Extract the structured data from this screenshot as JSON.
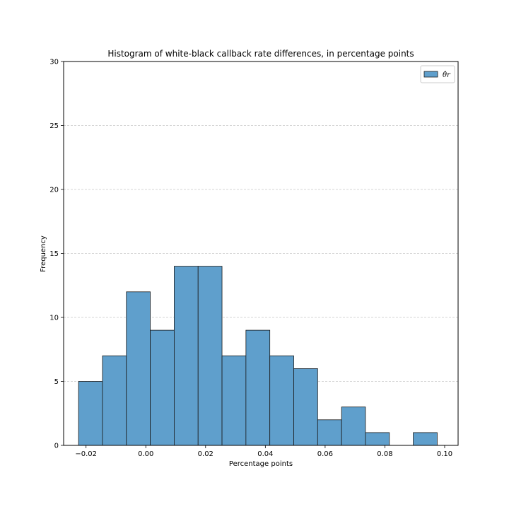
{
  "chart_data": {
    "type": "bar",
    "title": "Histogram of white-black callback rate differences, in percentage points",
    "xlabel": "Percentage points",
    "ylabel": "Frequency",
    "xlim": [
      -0.0275,
      0.1045
    ],
    "ylim": [
      0,
      30
    ],
    "x_ticks": [
      -0.02,
      0.0,
      0.02,
      0.04,
      0.06,
      0.08,
      0.1
    ],
    "x_tick_labels": [
      "−0.02",
      "0.00",
      "0.02",
      "0.04",
      "0.06",
      "0.08",
      "0.10"
    ],
    "y_ticks": [
      0,
      5,
      10,
      15,
      20,
      25,
      30
    ],
    "y_tick_labels": [
      "0",
      "5",
      "10",
      "15",
      "20",
      "25",
      "30"
    ],
    "grid": "y-dashed",
    "legend": {
      "placement": "top-right",
      "entries": [
        "θ̂r"
      ]
    },
    "bar_color": "#5f9fcc",
    "bins": [
      {
        "start": -0.0225,
        "end": -0.0145,
        "count": 5
      },
      {
        "start": -0.0145,
        "end": -0.0065,
        "count": 7
      },
      {
        "start": -0.0065,
        "end": 0.0015,
        "count": 12
      },
      {
        "start": 0.0015,
        "end": 0.0095,
        "count": 9
      },
      {
        "start": 0.0095,
        "end": 0.0175,
        "count": 14
      },
      {
        "start": 0.0175,
        "end": 0.0255,
        "count": 14
      },
      {
        "start": 0.0255,
        "end": 0.0335,
        "count": 7
      },
      {
        "start": 0.0335,
        "end": 0.0415,
        "count": 9
      },
      {
        "start": 0.0415,
        "end": 0.0495,
        "count": 7
      },
      {
        "start": 0.0495,
        "end": 0.0575,
        "count": 6
      },
      {
        "start": 0.0575,
        "end": 0.0655,
        "count": 2
      },
      {
        "start": 0.0655,
        "end": 0.0735,
        "count": 3
      },
      {
        "start": 0.0735,
        "end": 0.0815,
        "count": 1
      },
      {
        "start": 0.0815,
        "end": 0.0895,
        "count": 0
      },
      {
        "start": 0.0895,
        "end": 0.0975,
        "count": 1
      }
    ]
  }
}
